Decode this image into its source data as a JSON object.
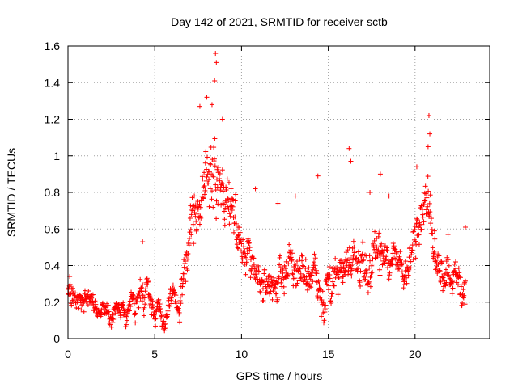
{
  "chart_data": {
    "type": "scatter",
    "title": "Day 142 of 2021, SRMTID for receiver sctb",
    "xlabel": "GPS time / hours",
    "ylabel": "SRMTID / TECUs",
    "xlim": [
      0,
      24.3
    ],
    "ylim": [
      0,
      1.6
    ],
    "xticks": [
      0,
      5,
      10,
      15,
      20
    ],
    "xtick_labels": [
      "0",
      "5",
      "10",
      "15",
      "20"
    ],
    "yticks": [
      0,
      0.2,
      0.4,
      0.6,
      0.8,
      1.0,
      1.2,
      1.4,
      1.6
    ],
    "ytick_labels": [
      "0",
      "0.2",
      "0.4",
      "0.6",
      "0.8",
      "1",
      "1.2",
      "1.4",
      "1.6"
    ],
    "grid": true,
    "marker": "plus",
    "color": "#ff0000",
    "series_profile": {
      "name": "SRMTID",
      "x_start": 0,
      "x_end": 22.9,
      "x_step": 0.02,
      "envelope": [
        {
          "x": 0.0,
          "center": 0.24,
          "spread": 0.07
        },
        {
          "x": 1.0,
          "center": 0.22,
          "spread": 0.07
        },
        {
          "x": 1.5,
          "center": 0.17,
          "spread": 0.06
        },
        {
          "x": 3.5,
          "center": 0.13,
          "spread": 0.06
        },
        {
          "x": 4.0,
          "center": 0.2,
          "spread": 0.08
        },
        {
          "x": 4.4,
          "center": 0.32,
          "spread": 0.12
        },
        {
          "x": 4.8,
          "center": 0.18,
          "spread": 0.07
        },
        {
          "x": 5.5,
          "center": 0.12,
          "spread": 0.06
        },
        {
          "x": 6.3,
          "center": 0.22,
          "spread": 0.08
        },
        {
          "x": 6.9,
          "center": 0.5,
          "spread": 0.14
        },
        {
          "x": 7.5,
          "center": 0.78,
          "spread": 0.18
        },
        {
          "x": 8.0,
          "center": 0.85,
          "spread": 0.22
        },
        {
          "x": 8.5,
          "center": 0.95,
          "spread": 0.25
        },
        {
          "x": 9.0,
          "center": 0.9,
          "spread": 0.22
        },
        {
          "x": 9.5,
          "center": 0.6,
          "spread": 0.15
        },
        {
          "x": 10.2,
          "center": 0.45,
          "spread": 0.12
        },
        {
          "x": 11.0,
          "center": 0.3,
          "spread": 0.1
        },
        {
          "x": 12.0,
          "center": 0.35,
          "spread": 0.12
        },
        {
          "x": 14.0,
          "center": 0.38,
          "spread": 0.14
        },
        {
          "x": 15.0,
          "center": 0.32,
          "spread": 0.12
        },
        {
          "x": 16.0,
          "center": 0.35,
          "spread": 0.13
        },
        {
          "x": 17.5,
          "center": 0.48,
          "spread": 0.16
        },
        {
          "x": 18.5,
          "center": 0.42,
          "spread": 0.13
        },
        {
          "x": 19.5,
          "center": 0.35,
          "spread": 0.1
        },
        {
          "x": 20.0,
          "center": 0.55,
          "spread": 0.16
        },
        {
          "x": 20.6,
          "center": 0.75,
          "spread": 0.22
        },
        {
          "x": 21.0,
          "center": 0.5,
          "spread": 0.14
        },
        {
          "x": 22.0,
          "center": 0.35,
          "spread": 0.12
        },
        {
          "x": 22.9,
          "center": 0.3,
          "spread": 0.12
        }
      ],
      "outliers": [
        [
          8.5,
          1.56
        ],
        [
          8.55,
          1.51
        ],
        [
          8.45,
          1.41
        ],
        [
          8.0,
          1.32
        ],
        [
          8.3,
          1.28
        ],
        [
          7.6,
          1.27
        ],
        [
          8.9,
          1.2
        ],
        [
          20.8,
          1.22
        ],
        [
          20.85,
          1.12
        ],
        [
          20.75,
          1.05
        ],
        [
          16.2,
          1.04
        ],
        [
          16.3,
          0.97
        ],
        [
          14.4,
          0.89
        ],
        [
          18.0,
          0.9
        ],
        [
          20.1,
          0.94
        ],
        [
          10.8,
          0.82
        ],
        [
          13.1,
          0.78
        ],
        [
          12.1,
          0.74
        ],
        [
          17.4,
          0.8
        ],
        [
          18.5,
          0.78
        ],
        [
          4.3,
          0.53
        ],
        [
          9.8,
          0.61
        ],
        [
          22.9,
          0.61
        ],
        [
          21.9,
          0.57
        ],
        [
          0.1,
          0.34
        ]
      ]
    }
  }
}
